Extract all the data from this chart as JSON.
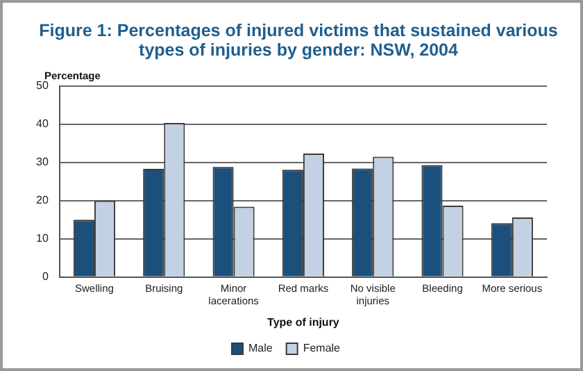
{
  "chart_data": {
    "type": "bar",
    "title": "Figure 1: Percentages of injured victims that sustained various types of injuries by gender: NSW, 2004",
    "ylabel": "Percentage",
    "xlabel": "Type of injury",
    "categories": [
      "Swelling",
      "Bruising",
      "Minor lacerations",
      "Red marks",
      "No visible injuries",
      "Bleeding",
      "More serious"
    ],
    "series": [
      {
        "name": "Male",
        "color": "#1b4f7c",
        "values": [
          15,
          28.3,
          28.8,
          28.1,
          28.4,
          29.3,
          14.1
        ]
      },
      {
        "name": "Female",
        "color": "#c3d1e4",
        "values": [
          20,
          40.3,
          18.4,
          32.3,
          31.5,
          18.7,
          15.6
        ]
      }
    ],
    "ylim": [
      0,
      50
    ],
    "yticks": [
      0,
      10,
      20,
      30,
      40,
      50
    ],
    "grid": "y",
    "legend": "bottom"
  }
}
